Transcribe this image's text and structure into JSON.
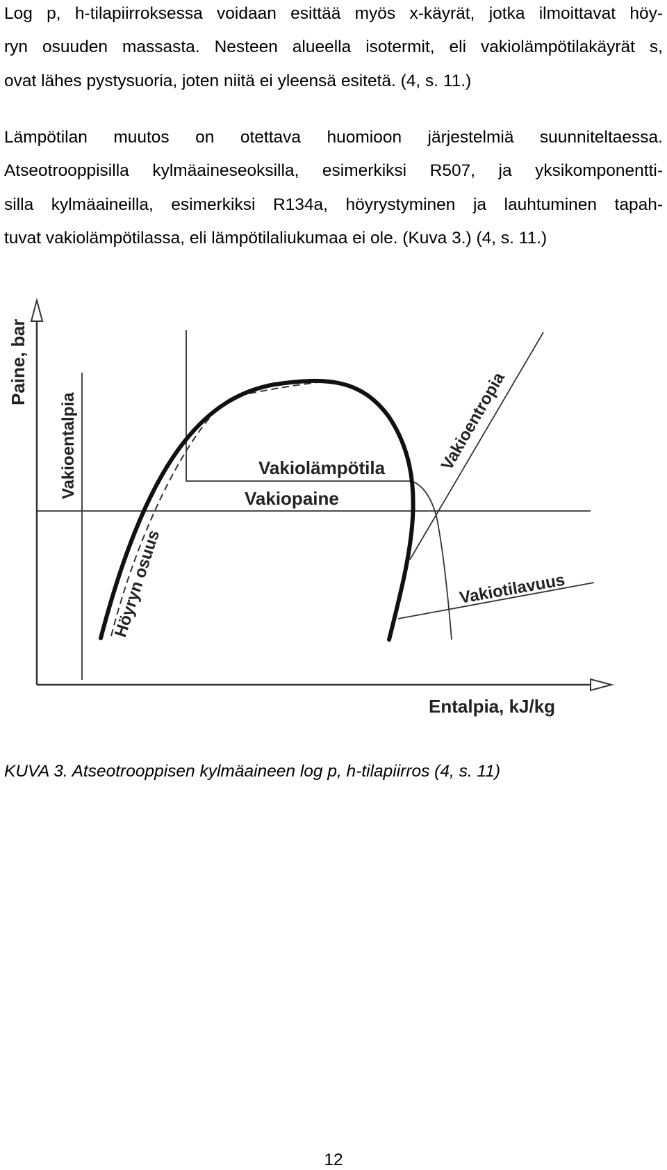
{
  "document": {
    "paragraphs": [
      {
        "lines": [
          "Log p, h-tilapiirroksessa voidaan esittää myös x-käyrät, jotka ilmoittavat höy-",
          "ryn osuuden massasta. Nesteen alueella isotermit, eli vakiolämpötilakäyrät s,",
          "ovat lähes pystysuoria, joten niitä ei yleensä esitetä. (4, s. 11.)"
        ]
      },
      {
        "lines": [
          "Lämpötilan muutos on otettava huomioon järjestelmiä suunniteltaessa.",
          "Atseotrooppisilla kylmäaineseoksilla, esimerkiksi R507, ja yksikomponentti-",
          "silla kylmäaineilla, esimerkiksi R134a, höyrystyminen ja lauhtuminen tapah-",
          "tuvat vakiolämpötilassa, eli lämpötilaliukumaa ei ole. (Kuva 3.) (4, s. 11.)"
        ]
      }
    ],
    "figure": {
      "y_axis_label": "Paine, bar",
      "x_axis_label": "Entalpia, kJ/kg",
      "labels": {
        "constant_enthalpy": "Vakioentalpia",
        "constant_temperature": "Vakiolämpötila",
        "constant_pressure": "Vakiopaine",
        "vapour_fraction": "Höyryn osuus",
        "constant_volume": "Vakiotilavuus",
        "constant_entropy": "Vakioentropia"
      }
    },
    "caption": "KUVA 3. Atseotrooppisen kylmäaineen log p, h-tilapiirros (4, s. 11)",
    "page_number": "12"
  }
}
